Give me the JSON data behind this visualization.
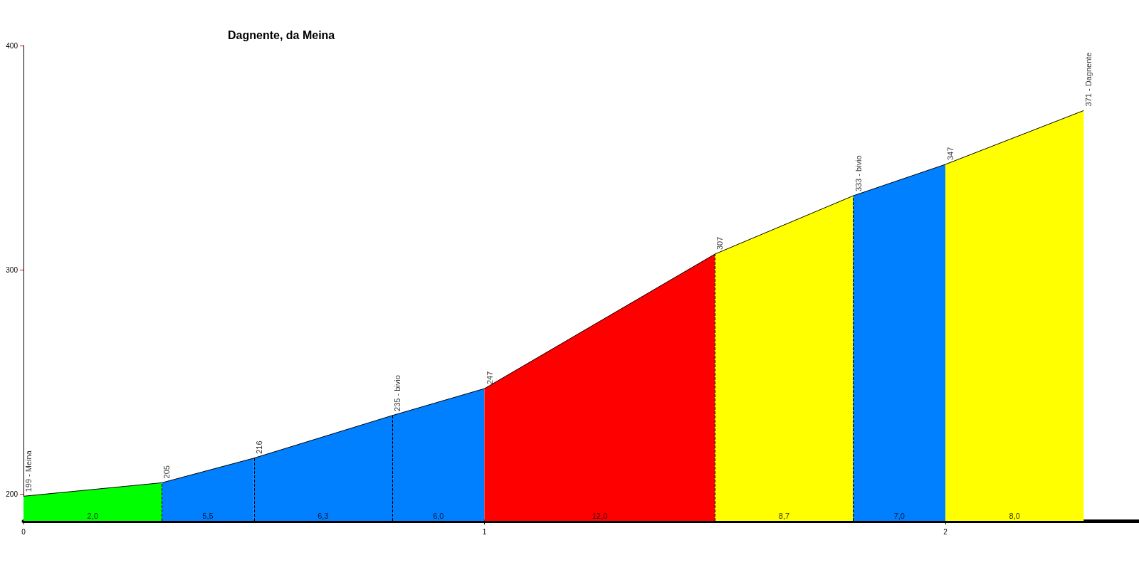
{
  "chart_data": {
    "type": "area",
    "title": "Dagnente, da Meina",
    "xlim": [
      0,
      2.42
    ],
    "xticks": [
      0,
      1,
      2
    ],
    "ylim": [
      188,
      400
    ],
    "yticks": [
      200,
      300,
      400
    ],
    "grid": false,
    "marker": "none",
    "series": [
      {
        "color": "#00ff00",
        "x": [
          0,
          0.3
        ],
        "values": [
          199,
          205
        ]
      },
      {
        "color": "#0080ff",
        "x": [
          0.3,
          0.5
        ],
        "values": [
          205,
          216
        ]
      },
      {
        "color": "#0080ff",
        "x": [
          0.5,
          0.8
        ],
        "values": [
          216,
          235
        ]
      },
      {
        "color": "#0080ff",
        "x": [
          0.8,
          1.0
        ],
        "values": [
          235,
          247
        ]
      },
      {
        "color": "#ff0000",
        "x": [
          1.0,
          1.5
        ],
        "values": [
          247,
          307
        ]
      },
      {
        "color": "#ffff00",
        "x": [
          1.5,
          1.8
        ],
        "values": [
          307,
          333
        ]
      },
      {
        "color": "#0080ff",
        "x": [
          1.8,
          2.0
        ],
        "values": [
          333,
          347
        ]
      },
      {
        "color": "#ffff00",
        "x": [
          2.0,
          2.3
        ],
        "values": [
          347,
          371
        ]
      }
    ],
    "annotations": [
      {
        "text": "199 - Meina",
        "x": 0,
        "y": 199
      },
      {
        "text": "205",
        "x": 0.3,
        "y": 205
      },
      {
        "text": "216",
        "x": 0.5,
        "y": 216
      },
      {
        "text": "235 - bivio",
        "x": 0.8,
        "y": 235
      },
      {
        "text": "247",
        "x": 1.0,
        "y": 247
      },
      {
        "text": "307",
        "x": 1.5,
        "y": 307
      },
      {
        "text": "333 - bivio",
        "x": 1.8,
        "y": 333
      },
      {
        "text": "347",
        "x": 2.0,
        "y": 347
      },
      {
        "text": "371 - Dagnente",
        "x": 2.3,
        "y": 371
      },
      "2,0",
      "5,5",
      "6,3",
      "6,0",
      "12,0",
      "8,7",
      "7,0",
      "8,0"
    ]
  }
}
